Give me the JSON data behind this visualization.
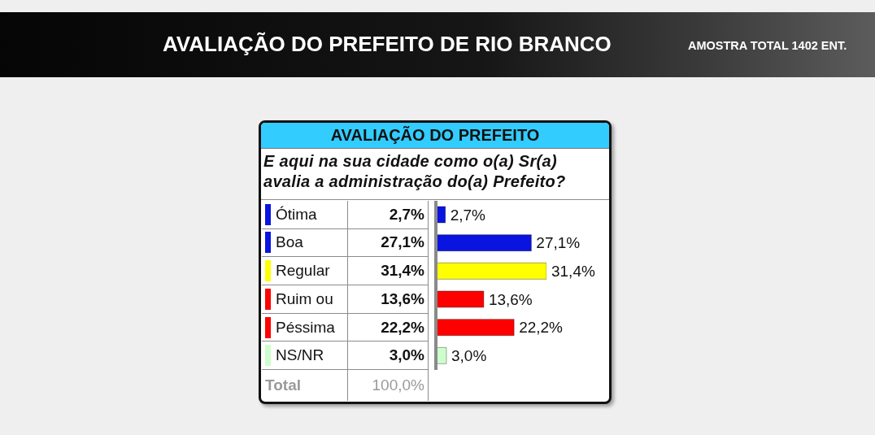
{
  "chart_data": {
    "type": "bar",
    "orientation": "horizontal",
    "title": "AVALIAÇÃO DO PREFEITO DE RIO BRANCO",
    "subtitle": "AVALIAÇÃO DO PREFEITO",
    "annotations": [
      "AMOSTRA TOTAL 1402 ENT.",
      "E aqui na sua cidade como o(a) Sr(a) avalia a administração do(a) Prefeito?",
      "Total",
      "100,0%"
    ],
    "categories": [
      "Ótima",
      "Boa",
      "Regular",
      "Ruim ou",
      "Péssima",
      "NS/NR"
    ],
    "values": [
      2.7,
      27.1,
      31.4,
      13.6,
      22.2,
      3.0
    ],
    "colors": [
      "#0a14e0",
      "#0a14e0",
      "#ffff00",
      "#ff0000",
      "#ff0000",
      "#ccffcc"
    ],
    "value_labels": [
      "2,7%",
      "27,1%",
      "31,4%",
      "13,6%",
      "22,2%",
      "3,0%"
    ]
  }
}
